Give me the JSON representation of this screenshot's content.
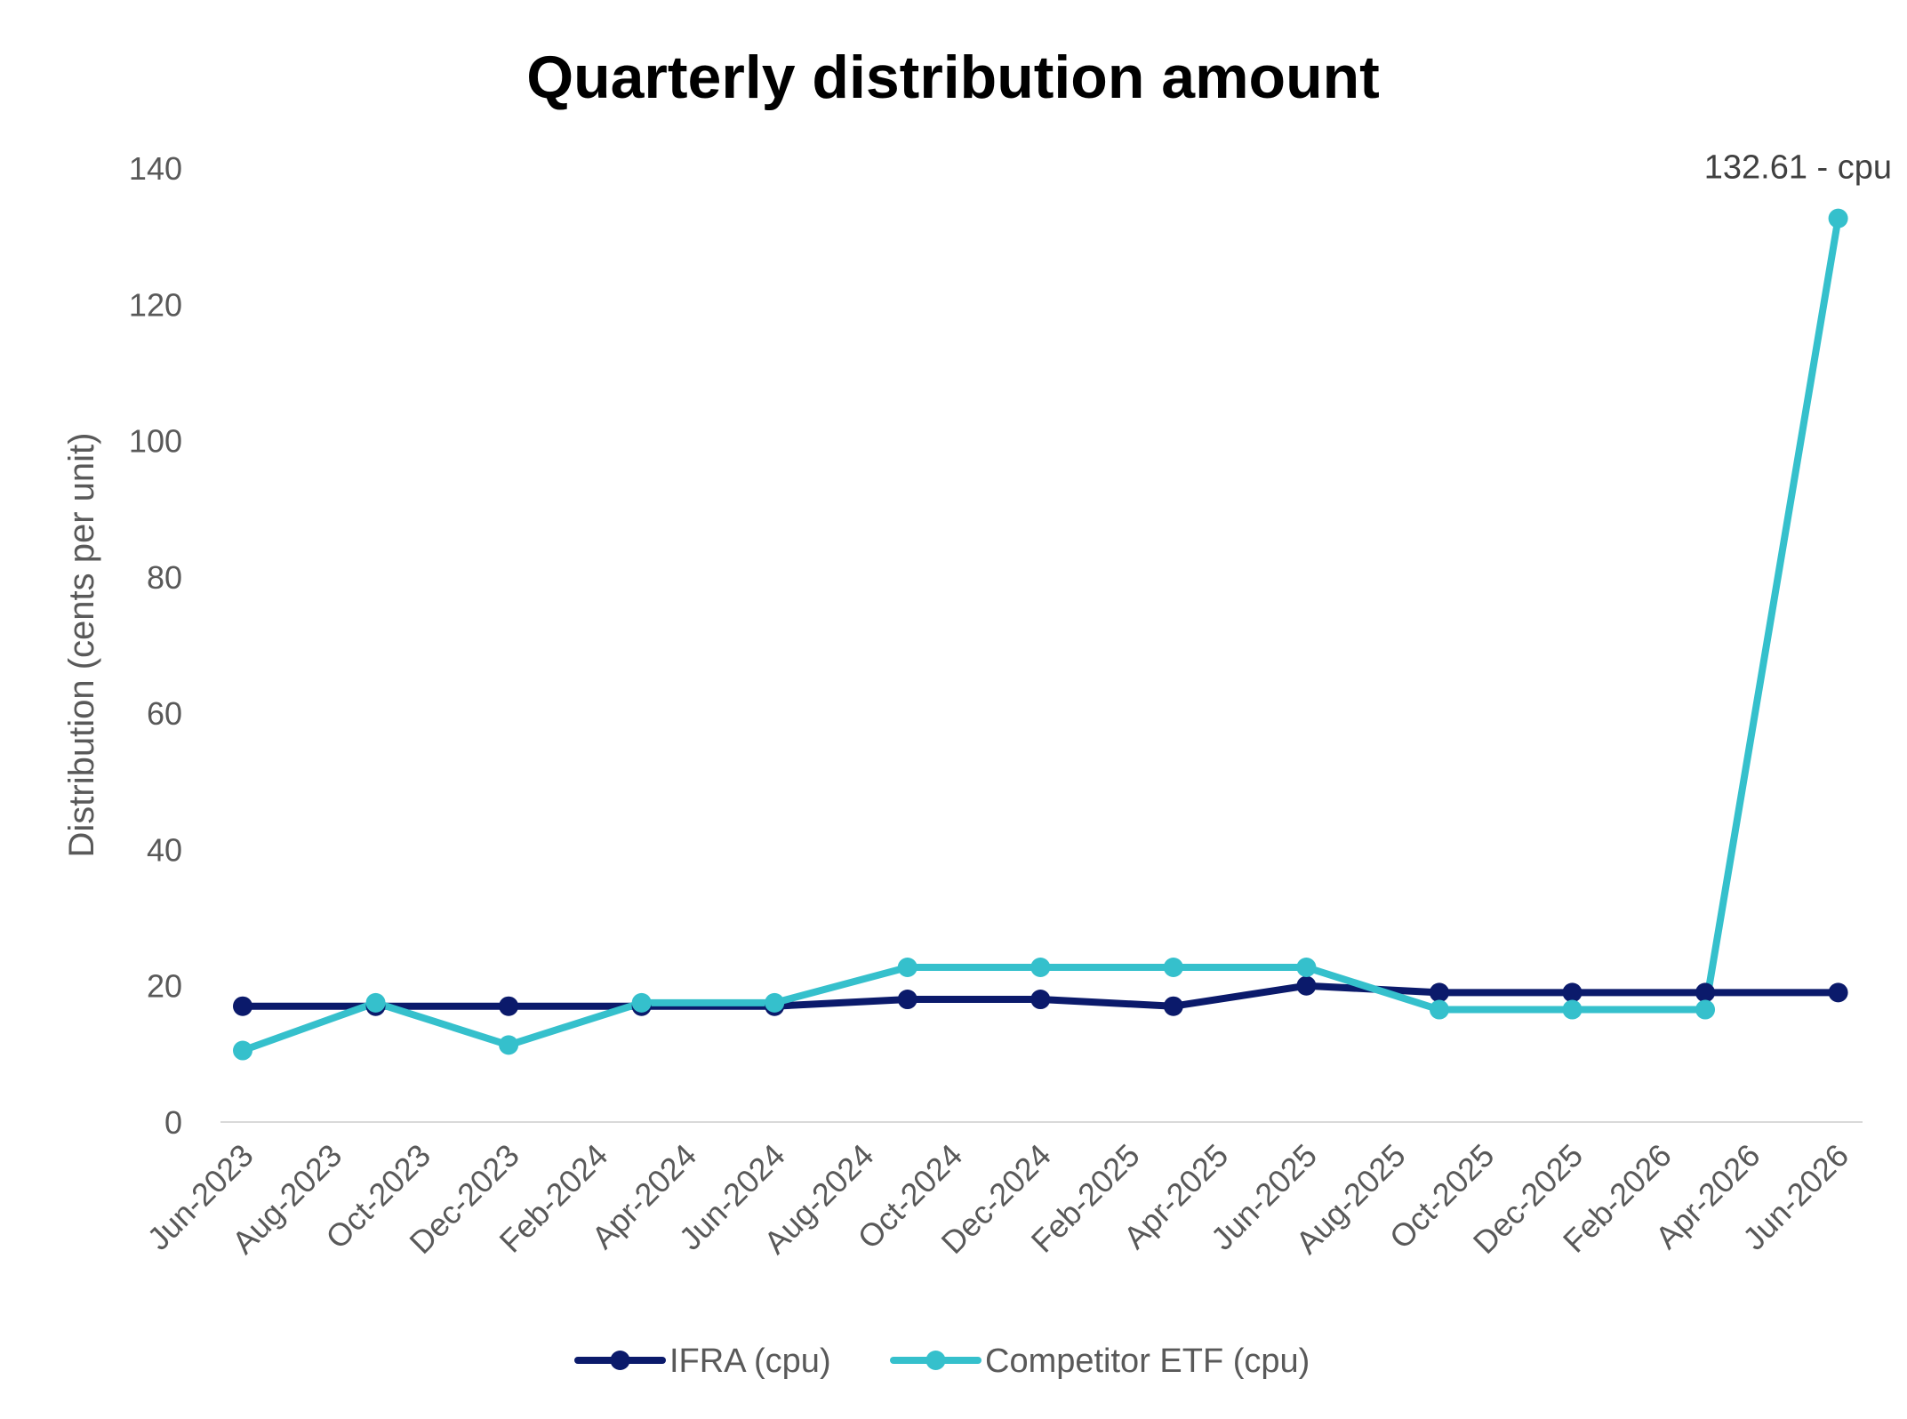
{
  "chart_data": {
    "type": "line",
    "title": "Quarterly distribution amount",
    "xlabel": "",
    "ylabel": "Distribution (cents per unit)",
    "ylim": [
      0,
      140
    ],
    "yticks": [
      0,
      20,
      40,
      60,
      80,
      100,
      120,
      140
    ],
    "categories": [
      "Jun-2023",
      "Aug-2023",
      "Oct-2023",
      "Dec-2023",
      "Feb-2024",
      "Apr-2024",
      "Jun-2024",
      "Aug-2024",
      "Oct-2024",
      "Dec-2024",
      "Feb-2025",
      "Apr-2025",
      "Jun-2025",
      "Aug-2025",
      "Oct-2025",
      "Dec-2025",
      "Feb-2026",
      "Apr-2026",
      "Jun-2026"
    ],
    "grid": false,
    "legend_position": "bottom",
    "series": [
      {
        "name": "IFRA (cpu)",
        "color": "#0b1a6b",
        "points": [
          {
            "x": "Jun-2023",
            "y": 17.0
          },
          {
            "x": "Sep-2023",
            "y": 17.0
          },
          {
            "x": "Dec-2023",
            "y": 17.0
          },
          {
            "x": "Mar-2024",
            "y": 17.0
          },
          {
            "x": "Jun-2024",
            "y": 17.0
          },
          {
            "x": "Sep-2024",
            "y": 18.0
          },
          {
            "x": "Dec-2024",
            "y": 18.0
          },
          {
            "x": "Mar-2025",
            "y": 17.0
          },
          {
            "x": "Jun-2025",
            "y": 20.0
          },
          {
            "x": "Sep-2025",
            "y": 19.0
          },
          {
            "x": "Dec-2025",
            "y": 19.0
          },
          {
            "x": "Mar-2026",
            "y": 19.0
          },
          {
            "x": "Jun-2026",
            "y": 19.0
          }
        ]
      },
      {
        "name": "Competitor ETF (cpu)",
        "color": "#35c0cc",
        "points": [
          {
            "x": "Jun-2023",
            "y": 10.5
          },
          {
            "x": "Sep-2023",
            "y": 17.5
          },
          {
            "x": "Dec-2023",
            "y": 11.3
          },
          {
            "x": "Mar-2024",
            "y": 17.5
          },
          {
            "x": "Jun-2024",
            "y": 17.5
          },
          {
            "x": "Sep-2024",
            "y": 22.7
          },
          {
            "x": "Dec-2024",
            "y": 22.7
          },
          {
            "x": "Mar-2025",
            "y": 22.7
          },
          {
            "x": "Jun-2025",
            "y": 22.7
          },
          {
            "x": "Sep-2025",
            "y": 16.5
          },
          {
            "x": "Dec-2025",
            "y": 16.5
          },
          {
            "x": "Mar-2026",
            "y": 16.5
          },
          {
            "x": "Jun-2026",
            "y": 132.61
          }
        ]
      }
    ],
    "annotations": [
      {
        "text": "132.61 - cpu",
        "series": "Competitor ETF (cpu)",
        "x": "Jun-2026",
        "y": 132.61
      }
    ],
    "colors": {
      "axis_line": "#d9d9d9",
      "tick_text": "#595959",
      "title_text": "#000000"
    }
  }
}
